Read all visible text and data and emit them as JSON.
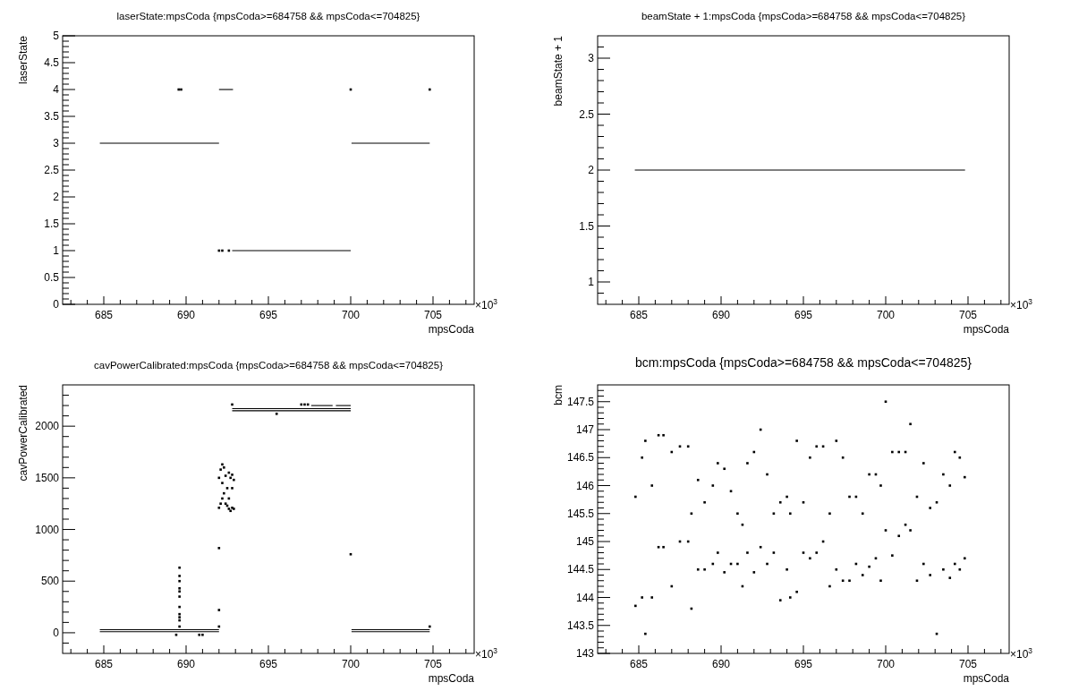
{
  "chart_data": [
    {
      "type": "scatter",
      "title": "laserState:mpsCoda {mpsCoda>=684758 && mpsCoda<=704825}",
      "xlabel": "mpsCoda",
      "ylabel": "laserState",
      "annotations": [
        "×10$^{3}$"
      ],
      "xlim": [
        682.5,
        707.5
      ],
      "xticks": [
        {
          "value": 683,
          "label": null
        },
        {
          "value": 684,
          "label": null
        },
        685,
        {
          "value": 686,
          "label": null
        },
        {
          "value": 687,
          "label": null
        },
        {
          "value": 688,
          "label": null
        },
        {
          "value": 689,
          "label": null
        },
        690,
        {
          "value": 691,
          "label": null
        },
        {
          "value": 692,
          "label": null
        },
        {
          "value": 693,
          "label": null
        },
        {
          "value": 694,
          "label": null
        },
        695,
        {
          "value": 696,
          "label": null
        },
        {
          "value": 697,
          "label": null
        },
        {
          "value": 698,
          "label": null
        },
        {
          "value": 699,
          "label": null
        },
        700,
        {
          "value": 701,
          "label": null
        },
        {
          "value": 702,
          "label": null
        },
        {
          "value": 703,
          "label": null
        },
        {
          "value": 704,
          "label": null
        },
        705,
        {
          "value": 706,
          "label": null
        },
        {
          "value": 707,
          "label": null
        }
      ],
      "ylim": [
        0,
        5
      ],
      "yticks": [
        0,
        {
          "value": 0.1,
          "label": null
        },
        {
          "value": 0.2,
          "label": null
        },
        {
          "value": 0.3,
          "label": null
        },
        {
          "value": 0.4,
          "label": null
        },
        0.5,
        {
          "value": 0.6,
          "label": null
        },
        {
          "value": 0.7,
          "label": null
        },
        {
          "value": 0.8,
          "label": null
        },
        {
          "value": 0.9,
          "label": null
        },
        1,
        {
          "value": 1.1,
          "label": null
        },
        {
          "value": 1.2,
          "label": null
        },
        {
          "value": 1.3,
          "label": null
        },
        {
          "value": 1.4,
          "label": null
        },
        1.5,
        {
          "value": 1.6,
          "label": null
        },
        {
          "value": 1.7,
          "label": null
        },
        {
          "value": 1.8,
          "label": null
        },
        {
          "value": 1.9,
          "label": null
        },
        2,
        {
          "value": 2.1,
          "label": null
        },
        {
          "value": 2.2,
          "label": null
        },
        {
          "value": 2.3,
          "label": null
        },
        {
          "value": 2.4,
          "label": null
        },
        2.5,
        {
          "value": 2.6,
          "label": null
        },
        {
          "value": 2.7,
          "label": null
        },
        {
          "value": 2.8,
          "label": null
        },
        {
          "value": 2.9,
          "label": null
        },
        3,
        {
          "value": 3.1,
          "label": null
        },
        {
          "value": 3.2,
          "label": null
        },
        {
          "value": 3.3,
          "label": null
        },
        {
          "value": 3.4,
          "label": null
        },
        3.5,
        {
          "value": 3.6,
          "label": null
        },
        {
          "value": 3.7,
          "label": null
        },
        {
          "value": 3.8,
          "label": null
        },
        {
          "value": 3.9,
          "label": null
        },
        4,
        {
          "value": 4.1,
          "label": null
        },
        {
          "value": 4.2,
          "label": null
        },
        {
          "value": 4.3,
          "label": null
        },
        {
          "value": 4.4,
          "label": null
        },
        4.5,
        {
          "value": 4.6,
          "label": null
        },
        {
          "value": 4.7,
          "label": null
        },
        {
          "value": 4.8,
          "label": null
        },
        {
          "value": 4.9,
          "label": null
        },
        5
      ],
      "series": [
        {
          "type": "line",
          "color": "#000000",
          "x": [
            684.76,
            692.0
          ],
          "values": [
            3,
            3
          ]
        },
        {
          "type": "line",
          "color": "#000000",
          "x": [
            700.05,
            704.8
          ],
          "values": [
            3,
            3
          ]
        },
        {
          "type": "line",
          "color": "#000000",
          "x": [
            692.0,
            692.85
          ],
          "values": [
            4,
            4
          ]
        },
        {
          "type": "line",
          "color": "#000000",
          "x": [
            692.8,
            700.0
          ],
          "values": [
            1,
            1
          ]
        },
        {
          "type": "scatter",
          "marker": "square",
          "color": "#000000",
          "x": [
            689.55,
            689.7,
            700.0,
            704.8,
            692.0,
            692.2,
            692.6
          ],
          "values": [
            4,
            4,
            4,
            4,
            1,
            1,
            1
          ]
        }
      ]
    },
    {
      "type": "scatter",
      "title": "beamState + 1:mpsCoda {mpsCoda>=684758 && mpsCoda<=704825}",
      "xlabel": "mpsCoda",
      "ylabel": "beamState + 1",
      "annotations": [
        "×10$^{3}$"
      ],
      "xlim": [
        682.5,
        707.5
      ],
      "xticks": [
        {
          "value": 683,
          "label": null
        },
        {
          "value": 684,
          "label": null
        },
        685,
        {
          "value": 686,
          "label": null
        },
        {
          "value": 687,
          "label": null
        },
        {
          "value": 688,
          "label": null
        },
        {
          "value": 689,
          "label": null
        },
        690,
        {
          "value": 691,
          "label": null
        },
        {
          "value": 692,
          "label": null
        },
        {
          "value": 693,
          "label": null
        },
        {
          "value": 694,
          "label": null
        },
        695,
        {
          "value": 696,
          "label": null
        },
        {
          "value": 697,
          "label": null
        },
        {
          "value": 698,
          "label": null
        },
        {
          "value": 699,
          "label": null
        },
        700,
        {
          "value": 701,
          "label": null
        },
        {
          "value": 702,
          "label": null
        },
        {
          "value": 703,
          "label": null
        },
        {
          "value": 704,
          "label": null
        },
        705,
        {
          "value": 706,
          "label": null
        },
        {
          "value": 707,
          "label": null
        }
      ],
      "ylim": [
        0.8,
        3.2
      ],
      "yticks": [
        {
          "value": 0.9,
          "label": null
        },
        1,
        {
          "value": 1.1,
          "label": null
        },
        {
          "value": 1.2,
          "label": null
        },
        {
          "value": 1.3,
          "label": null
        },
        {
          "value": 1.4,
          "label": null
        },
        1.5,
        {
          "value": 1.6,
          "label": null
        },
        {
          "value": 1.7,
          "label": null
        },
        {
          "value": 1.8,
          "label": null
        },
        {
          "value": 1.9,
          "label": null
        },
        2,
        {
          "value": 2.1,
          "label": null
        },
        {
          "value": 2.2,
          "label": null
        },
        {
          "value": 2.3,
          "label": null
        },
        {
          "value": 2.4,
          "label": null
        },
        2.5,
        {
          "value": 2.6,
          "label": null
        },
        {
          "value": 2.7,
          "label": null
        },
        {
          "value": 2.8,
          "label": null
        },
        {
          "value": 2.9,
          "label": null
        },
        3,
        {
          "value": 3.1,
          "label": null
        }
      ],
      "series": [
        {
          "type": "line",
          "color": "#000000",
          "x": [
            684.76,
            704.82
          ],
          "values": [
            2,
            2
          ]
        }
      ]
    },
    {
      "type": "scatter",
      "title": "cavPowerCalibrated:mpsCoda {mpsCoda>=684758 && mpsCoda<=704825}",
      "xlabel": "mpsCoda",
      "ylabel": "cavPowerCalibrated",
      "annotations": [
        "×10$^{3}$"
      ],
      "xlim": [
        682.5,
        707.5
      ],
      "xticks": [
        {
          "value": 683,
          "label": null
        },
        {
          "value": 684,
          "label": null
        },
        685,
        {
          "value": 686,
          "label": null
        },
        {
          "value": 687,
          "label": null
        },
        {
          "value": 688,
          "label": null
        },
        {
          "value": 689,
          "label": null
        },
        690,
        {
          "value": 691,
          "label": null
        },
        {
          "value": 692,
          "label": null
        },
        {
          "value": 693,
          "label": null
        },
        {
          "value": 694,
          "label": null
        },
        695,
        {
          "value": 696,
          "label": null
        },
        {
          "value": 697,
          "label": null
        },
        {
          "value": 698,
          "label": null
        },
        {
          "value": 699,
          "label": null
        },
        700,
        {
          "value": 701,
          "label": null
        },
        {
          "value": 702,
          "label": null
        },
        {
          "value": 703,
          "label": null
        },
        {
          "value": 704,
          "label": null
        },
        705,
        {
          "value": 706,
          "label": null
        },
        {
          "value": 707,
          "label": null
        }
      ],
      "ylim": [
        -200,
        2400
      ],
      "yticks": [
        {
          "value": -100,
          "label": null
        },
        0,
        {
          "value": 100,
          "label": null
        },
        {
          "value": 200,
          "label": null
        },
        {
          "value": 300,
          "label": null
        },
        {
          "value": 400,
          "label": null
        },
        500,
        {
          "value": 600,
          "label": null
        },
        {
          "value": 700,
          "label": null
        },
        {
          "value": 800,
          "label": null
        },
        {
          "value": 900,
          "label": null
        },
        1000,
        {
          "value": 1100,
          "label": null
        },
        {
          "value": 1200,
          "label": null
        },
        {
          "value": 1300,
          "label": null
        },
        {
          "value": 1400,
          "label": null
        },
        1500,
        {
          "value": 1600,
          "label": null
        },
        {
          "value": 1700,
          "label": null
        },
        {
          "value": 1800,
          "label": null
        },
        {
          "value": 1900,
          "label": null
        },
        2000,
        {
          "value": 2100,
          "label": null
        },
        {
          "value": 2200,
          "label": null
        },
        {
          "value": 2300,
          "label": null
        }
      ],
      "series": [
        {
          "type": "line",
          "color": "#000000",
          "x": [
            684.76,
            692.0
          ],
          "values": [
            10,
            10
          ]
        },
        {
          "type": "line",
          "color": "#000000",
          "x": [
            684.76,
            692.0
          ],
          "values": [
            30,
            30
          ]
        },
        {
          "type": "line",
          "color": "#000000",
          "x": [
            700.05,
            704.8
          ],
          "values": [
            10,
            10
          ]
        },
        {
          "type": "line",
          "color": "#000000",
          "x": [
            700.05,
            704.8
          ],
          "values": [
            30,
            30
          ]
        },
        {
          "type": "line",
          "color": "#000000",
          "x": [
            692.8,
            700.0
          ],
          "values": [
            2150,
            2150
          ]
        },
        {
          "type": "line",
          "color": "#000000",
          "x": [
            692.8,
            700.0
          ],
          "values": [
            2170,
            2170
          ]
        },
        {
          "type": "line",
          "color": "#000000",
          "x": [
            697.6,
            698.9
          ],
          "values": [
            2200,
            2200
          ]
        },
        {
          "type": "line",
          "color": "#000000",
          "x": [
            699.1,
            700.0
          ],
          "values": [
            2200,
            2200
          ]
        },
        {
          "type": "scatter",
          "marker": "square",
          "color": "#000000",
          "x": [
            689.6,
            689.6,
            689.6,
            689.6,
            689.6,
            689.6,
            689.6,
            689.6,
            689.6,
            689.6,
            689.6,
            689.4,
            690.8,
            691.0,
            692.0,
            692.0,
            692.0,
            700.0,
            695.5,
            692.8,
            697.0,
            697.2,
            697.4,
            704.8,
            692.0,
            692.0,
            692.1,
            692.1,
            692.2,
            692.2,
            692.2,
            692.3,
            692.3,
            692.4,
            692.4,
            692.5,
            692.5,
            692.6,
            692.6,
            692.6,
            692.7,
            692.7,
            692.8,
            692.8,
            692.8,
            692.9,
            692.9
          ],
          "values": [
            630,
            550,
            500,
            430,
            400,
            350,
            250,
            180,
            150,
            120,
            60,
            -20,
            -20,
            -20,
            820,
            220,
            60,
            760,
            2120,
            2210,
            2210,
            2210,
            2210,
            60,
            1210,
            1500,
            1250,
            1580,
            1300,
            1450,
            1630,
            1350,
            1600,
            1250,
            1520,
            1230,
            1400,
            1200,
            1550,
            1300,
            1180,
            1500,
            1210,
            1400,
            1530,
            1200,
            1480
          ]
        }
      ]
    },
    {
      "type": "scatter",
      "title": "bcm:mpsCoda {mpsCoda>=684758 && mpsCoda<=704825}",
      "xlabel": "mpsCoda",
      "ylabel": "bcm",
      "annotations": [
        "×10$^{3}$"
      ],
      "xlim": [
        682.5,
        707.5
      ],
      "xticks": [
        {
          "value": 683,
          "label": null
        },
        {
          "value": 684,
          "label": null
        },
        685,
        {
          "value": 686,
          "label": null
        },
        {
          "value": 687,
          "label": null
        },
        {
          "value": 688,
          "label": null
        },
        {
          "value": 689,
          "label": null
        },
        690,
        {
          "value": 691,
          "label": null
        },
        {
          "value": 692,
          "label": null
        },
        {
          "value": 693,
          "label": null
        },
        {
          "value": 694,
          "label": null
        },
        695,
        {
          "value": 696,
          "label": null
        },
        {
          "value": 697,
          "label": null
        },
        {
          "value": 698,
          "label": null
        },
        {
          "value": 699,
          "label": null
        },
        700,
        {
          "value": 701,
          "label": null
        },
        {
          "value": 702,
          "label": null
        },
        {
          "value": 703,
          "label": null
        },
        {
          "value": 704,
          "label": null
        },
        705,
        {
          "value": 706,
          "label": null
        },
        {
          "value": 707,
          "label": null
        }
      ],
      "ylim": [
        143,
        147.8
      ],
      "yticks": [
        143,
        {
          "value": 143.1,
          "label": null
        },
        {
          "value": 143.2,
          "label": null
        },
        {
          "value": 143.3,
          "label": null
        },
        {
          "value": 143.4,
          "label": null
        },
        143.5,
        {
          "value": 143.6,
          "label": null
        },
        {
          "value": 143.7,
          "label": null
        },
        {
          "value": 143.8,
          "label": null
        },
        {
          "value": 143.9,
          "label": null
        },
        144,
        {
          "value": 144.1,
          "label": null
        },
        {
          "value": 144.2,
          "label": null
        },
        {
          "value": 144.3,
          "label": null
        },
        {
          "value": 144.4,
          "label": null
        },
        144.5,
        {
          "value": 144.6,
          "label": null
        },
        {
          "value": 144.7,
          "label": null
        },
        {
          "value": 144.8,
          "label": null
        },
        {
          "value": 144.9,
          "label": null
        },
        145,
        {
          "value": 145.1,
          "label": null
        },
        {
          "value": 145.2,
          "label": null
        },
        {
          "value": 145.3,
          "label": null
        },
        {
          "value": 145.4,
          "label": null
        },
        145.5,
        {
          "value": 145.6,
          "label": null
        },
        {
          "value": 145.7,
          "label": null
        },
        {
          "value": 145.8,
          "label": null
        },
        {
          "value": 145.9,
          "label": null
        },
        146,
        {
          "value": 146.1,
          "label": null
        },
        {
          "value": 146.2,
          "label": null
        },
        {
          "value": 146.3,
          "label": null
        },
        {
          "value": 146.4,
          "label": null
        },
        146.5,
        {
          "value": 146.6,
          "label": null
        },
        {
          "value": 146.7,
          "label": null
        },
        {
          "value": 146.8,
          "label": null
        },
        {
          "value": 146.9,
          "label": null
        },
        147,
        {
          "value": 147.1,
          "label": null
        },
        {
          "value": 147.2,
          "label": null
        },
        {
          "value": 147.3,
          "label": null
        },
        {
          "value": 147.4,
          "label": null
        },
        147.5,
        {
          "value": 147.6,
          "label": null
        },
        {
          "value": 147.7,
          "label": null
        }
      ],
      "series": [
        {
          "type": "scatter",
          "marker": "square",
          "color": "#000000",
          "x": [
            684.8,
            685.2,
            685.4,
            685.8,
            686.2,
            686.5,
            687.0,
            687.5,
            688.0,
            688.2,
            688.6,
            689.0,
            689.5,
            689.8,
            690.2,
            690.6,
            691.0,
            691.3,
            691.6,
            692.0,
            692.4,
            692.8,
            693.2,
            693.6,
            694.0,
            694.2,
            694.6,
            695.0,
            695.4,
            695.8,
            696.2,
            696.6,
            697.0,
            697.4,
            697.8,
            698.2,
            698.6,
            699.0,
            699.4,
            699.7,
            700.0,
            700.4,
            700.8,
            701.2,
            701.5,
            701.9,
            702.3,
            702.7,
            703.1,
            703.5,
            703.9,
            704.2,
            704.5,
            704.8
          ],
          "values": [
            143.85,
            144.0,
            143.35,
            144.0,
            144.9,
            144.9,
            144.2,
            145.0,
            145.0,
            143.8,
            144.5,
            144.5,
            144.6,
            144.8,
            144.45,
            144.6,
            144.6,
            144.2,
            144.8,
            144.45,
            144.9,
            144.6,
            144.8,
            143.95,
            144.5,
            144.0,
            144.1,
            144.8,
            144.7,
            144.8,
            145.0,
            144.2,
            144.5,
            144.3,
            144.3,
            144.6,
            144.4,
            144.55,
            144.7,
            144.3,
            145.2,
            144.75,
            145.1,
            145.3,
            145.2,
            144.3,
            144.6,
            144.4,
            143.35,
            144.5,
            144.35,
            144.6,
            144.5,
            144.7
          ]
        },
        {
          "type": "scatter",
          "marker": "square",
          "color": "#000000",
          "x": [
            684.8,
            685.2,
            685.4,
            685.8,
            686.2,
            686.5,
            687.0,
            687.5,
            688.0,
            688.2,
            688.6,
            689.0,
            689.5,
            689.8,
            690.2,
            690.6,
            691.0,
            691.3,
            691.6,
            692.0,
            692.4,
            692.8,
            693.2,
            693.6,
            694.0,
            694.2,
            694.6,
            695.0,
            695.4,
            695.8,
            696.2,
            696.6,
            697.0,
            697.4,
            697.8,
            698.2,
            698.6,
            699.0,
            699.4,
            699.7,
            700.0,
            700.4,
            700.8,
            701.2,
            701.5,
            701.9,
            702.3,
            702.7,
            703.1,
            703.5,
            703.9,
            704.2,
            704.5,
            704.8
          ],
          "values": [
            145.8,
            146.5,
            146.8,
            146.0,
            146.9,
            146.9,
            146.6,
            146.7,
            146.7,
            145.5,
            146.1,
            145.7,
            146.0,
            146.4,
            146.3,
            145.9,
            145.5,
            145.3,
            146.4,
            146.6,
            147.0,
            146.2,
            145.5,
            145.7,
            145.8,
            145.5,
            146.8,
            145.7,
            146.5,
            146.7,
            146.7,
            145.5,
            146.8,
            146.5,
            145.8,
            145.8,
            145.5,
            146.2,
            146.2,
            146.0,
            147.5,
            146.6,
            146.6,
            146.6,
            147.1,
            145.8,
            146.4,
            145.6,
            145.7,
            146.2,
            146.0,
            146.6,
            146.5,
            146.15
          ]
        }
      ]
    }
  ]
}
